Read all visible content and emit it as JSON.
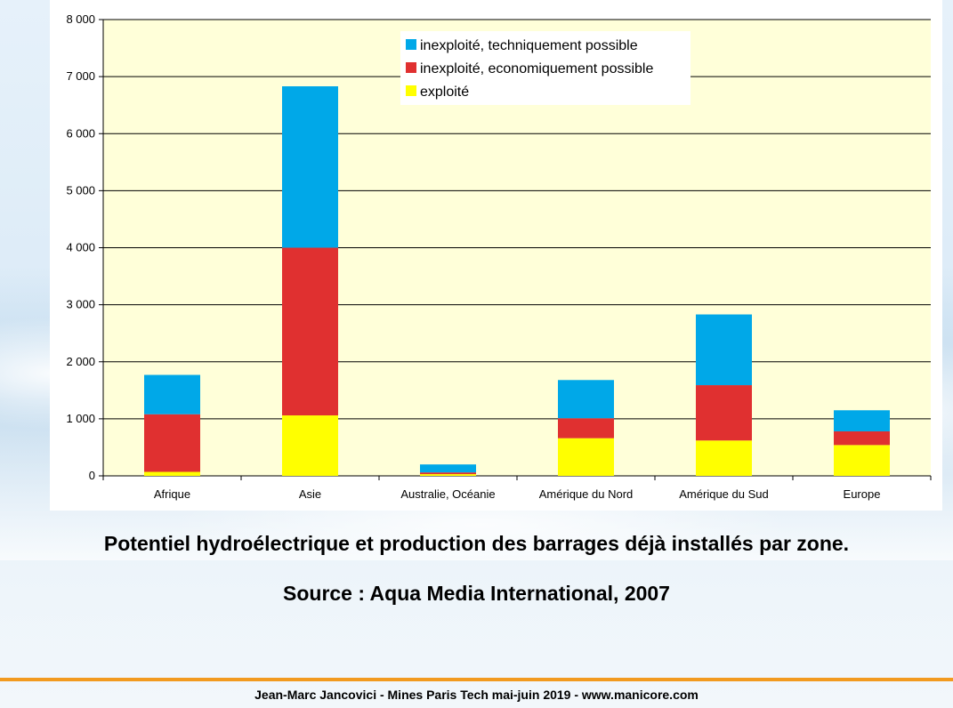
{
  "chart_data": {
    "type": "bar",
    "stacked": true,
    "title": "",
    "xlabel": "",
    "ylabel": "",
    "ylim": [
      0,
      8000
    ],
    "yticks": [
      0,
      1000,
      2000,
      3000,
      4000,
      5000,
      6000,
      7000,
      8000
    ],
    "ytick_labels": [
      "0",
      "1 000",
      "2 000",
      "3 000",
      "4 000",
      "5 000",
      "6 000",
      "7 000",
      "8 000"
    ],
    "grid": true,
    "legend_position": "top-right",
    "categories": [
      "Afrique",
      "Asie",
      "Australie, Océanie",
      "Amérique du Nord",
      "Amérique du Sud",
      "Europe"
    ],
    "series": [
      {
        "name": "exploité",
        "color": "#ffff00",
        "values": [
          70,
          1060,
          30,
          660,
          620,
          540
        ]
      },
      {
        "name": "inexploité, economiquement possible",
        "color": "#e03030",
        "values": [
          1010,
          2940,
          30,
          350,
          970,
          240
        ]
      },
      {
        "name": "inexploité, techniquement possible",
        "color": "#00a8e8",
        "values": [
          690,
          2830,
          140,
          670,
          1240,
          370
        ]
      }
    ],
    "legend_order": [
      2,
      1,
      0
    ]
  },
  "caption": {
    "title": "Potentiel hydroélectrique et production des barrages déjà installés par zone.",
    "source": "Source : Aqua Media International, 2007"
  },
  "footer": {
    "text": "Jean-Marc Jancovici - Mines Paris Tech mai-juin 2019 - www.manicore.com"
  },
  "colors": {
    "plot_background": "#ffffd9",
    "footer_bar": "#f29a1f"
  }
}
